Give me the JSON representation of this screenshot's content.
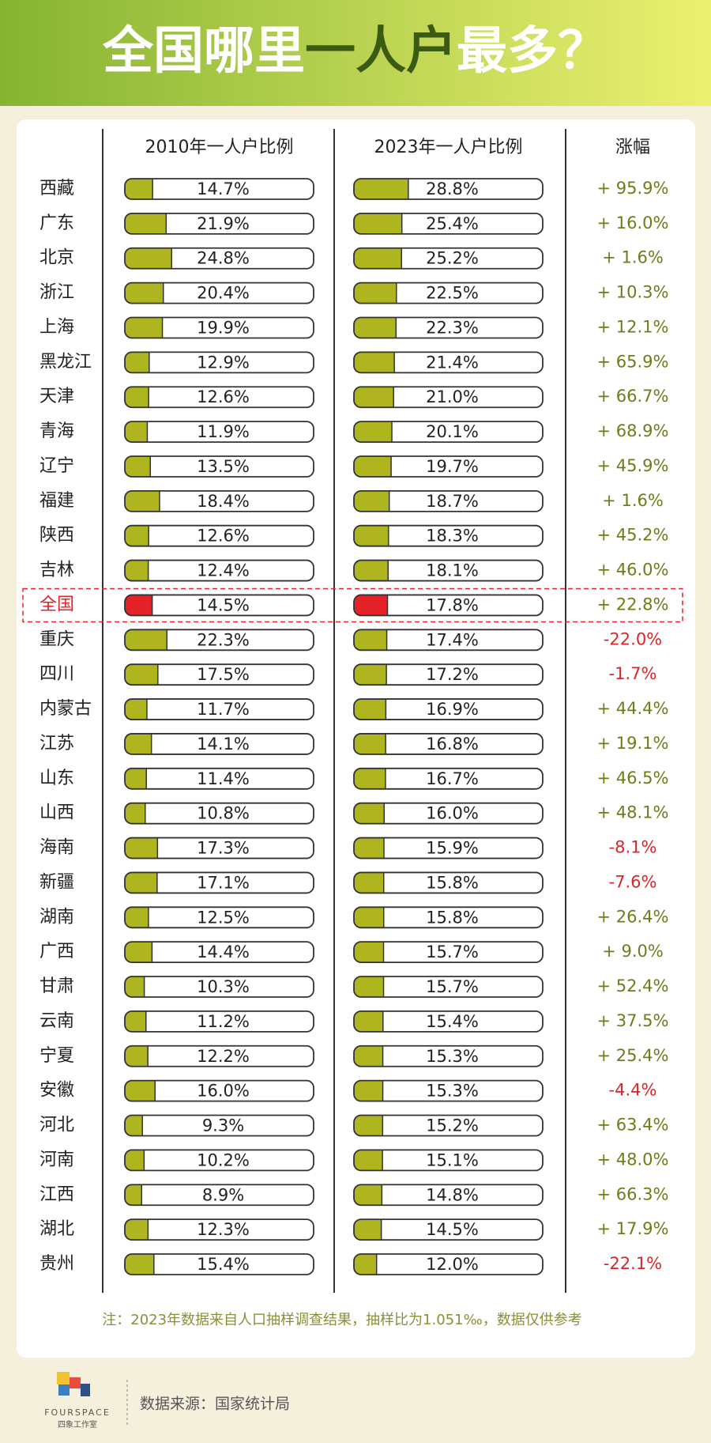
{
  "chart_data": {
    "type": "bar-table",
    "title": [
      "全国哪里",
      "一人户",
      "最多？"
    ],
    "column_header": "涨幅",
    "categories": [
      "西藏",
      "广东",
      "北京",
      "浙江",
      "上海",
      "黑龙江",
      "天津",
      "青海",
      "辽宁",
      "福建",
      "陕西",
      "吉林",
      "全国",
      "重庆",
      "四川",
      "内蒙古",
      "江苏",
      "山东",
      "山西",
      "海南",
      "新疆",
      "湖南",
      "广西",
      "甘肃",
      "云南",
      "宁夏",
      "安徽",
      "河北",
      "河南",
      "江西",
      "湖北",
      "贵州"
    ],
    "xlim": [
      0,
      100
    ],
    "series": [
      {
        "name": "2010年一人户比例",
        "color": "#aeb51e",
        "values": [
          14.7,
          21.9,
          24.8,
          20.4,
          19.9,
          12.9,
          12.6,
          11.9,
          13.5,
          18.4,
          12.6,
          12.4,
          14.5,
          22.3,
          17.5,
          11.7,
          14.1,
          11.4,
          10.8,
          17.3,
          17.1,
          12.5,
          14.4,
          10.3,
          11.2,
          12.2,
          16.0,
          9.3,
          10.2,
          8.9,
          12.3,
          15.4
        ],
        "value_labels": [
          "14.7%",
          "21.9%",
          "24.8%",
          "20.4%",
          "19.9%",
          "12.9%",
          "12.6%",
          "11.9%",
          "13.5%",
          "18.4%",
          "12.6%",
          "12.4%",
          "14.5%",
          "22.3%",
          "17.5%",
          "11.7%",
          "14.1%",
          "11.4%",
          "10.8%",
          "17.3%",
          "17.1%",
          "12.5%",
          "14.4%",
          "10.3%",
          "11.2%",
          "12.2%",
          "16.0%",
          "9.3%",
          "10.2%",
          "8.9%",
          "12.3%",
          "15.4%"
        ]
      },
      {
        "name": "2023年一人户比例",
        "color": "#aeb51e",
        "values": [
          28.8,
          25.4,
          25.2,
          22.5,
          22.3,
          21.4,
          21.0,
          20.1,
          19.7,
          18.7,
          18.3,
          18.1,
          17.8,
          17.4,
          17.2,
          16.9,
          16.8,
          16.7,
          16.0,
          15.9,
          15.8,
          15.8,
          15.7,
          15.7,
          15.4,
          15.3,
          15.3,
          15.2,
          15.1,
          14.8,
          14.5,
          12.0
        ],
        "value_labels": [
          "28.8%",
          "25.4%",
          "25.2%",
          "22.5%",
          "22.3%",
          "21.4%",
          "21.0%",
          "20.1%",
          "19.7%",
          "18.7%",
          "18.3%",
          "18.1%",
          "17.8%",
          "17.4%",
          "17.2%",
          "16.9%",
          "16.8%",
          "16.7%",
          "16.0%",
          "15.9%",
          "15.8%",
          "15.8%",
          "15.7%",
          "15.7%",
          "15.4%",
          "15.3%",
          "15.3%",
          "15.2%",
          "15.1%",
          "14.8%",
          "14.5%",
          "12.0%"
        ]
      }
    ],
    "change": {
      "values": [
        95.9,
        16.0,
        1.6,
        10.3,
        12.1,
        65.9,
        66.7,
        68.9,
        45.9,
        1.6,
        45.2,
        46.0,
        22.8,
        -22.0,
        -1.7,
        44.4,
        19.1,
        46.5,
        48.1,
        -8.1,
        -7.6,
        26.4,
        9.0,
        52.4,
        37.5,
        25.4,
        -4.4,
        63.4,
        48.0,
        66.3,
        17.9,
        -22.1
      ],
      "value_labels": [
        "+ 95.9%",
        "+ 16.0%",
        "+ 1.6%",
        "+ 10.3%",
        "+ 12.1%",
        "+ 65.9%",
        "+ 66.7%",
        "+ 68.9%",
        "+ 45.9%",
        "+ 1.6%",
        "+ 45.2%",
        "+ 46.0%",
        "+ 22.8%",
        "-22.0%",
        "-1.7%",
        "+ 44.4%",
        "+ 19.1%",
        "+ 46.5%",
        "+ 48.1%",
        "-8.1%",
        "-7.6%",
        "+ 26.4%",
        "+ 9.0%",
        "+ 52.4%",
        "+ 37.5%",
        "+ 25.4%",
        "-4.4%",
        "+ 63.4%",
        "+ 48.0%",
        "+ 66.3%",
        "+ 17.9%",
        "-22.1%"
      ],
      "positive_color": "#6e7d18",
      "negative_color": "#d8262c"
    },
    "highlight": {
      "category": 12,
      "color": "#e52227"
    },
    "note": "注：2023年数据来自人口抽样调查结果，抽样比为1.051‰，数据仅供参考",
    "logo": [
      "FOURSPACE",
      "四象工作室"
    ],
    "source": "数据来源：国家统计局"
  }
}
